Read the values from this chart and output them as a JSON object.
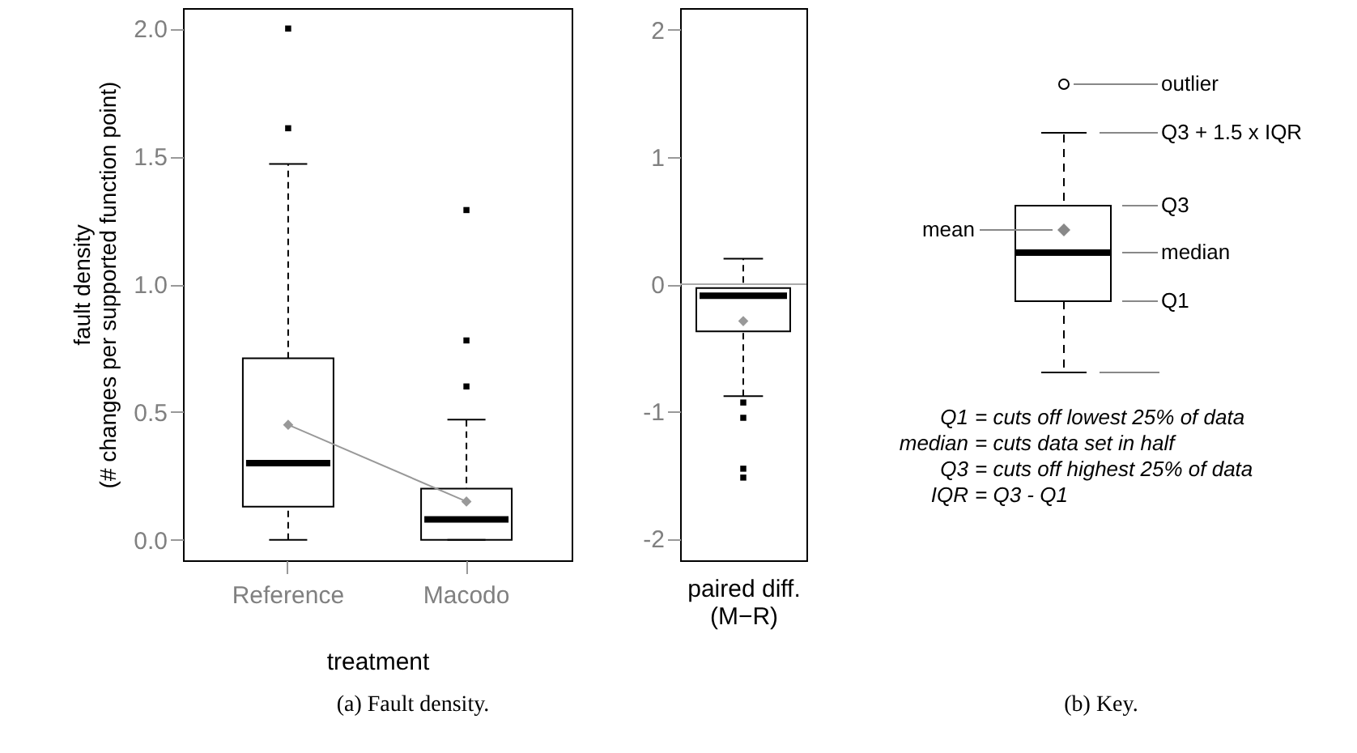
{
  "chart_data": [
    {
      "type": "box",
      "ylabel": "fault density\n(# changes per supported function point)",
      "xlabel": "treatment",
      "categories": [
        "Reference",
        "Macodo"
      ],
      "boxes": [
        {
          "low": 0,
          "q1": 0.13,
          "median": 0.3,
          "q3": 0.71,
          "high": 1.47,
          "mean": 0.45,
          "outliers": [
            1.61,
            2.0
          ]
        },
        {
          "low": 0,
          "q1": 0,
          "median": 0.08,
          "q3": 0.2,
          "high": 0.47,
          "mean": 0.15,
          "outliers": [
            0.6,
            0.78,
            1.29
          ]
        }
      ],
      "series": [
        {
          "type": "line",
          "color": "#999999",
          "x": [
            "Reference",
            "Macodo"
          ],
          "values": [
            0.45,
            0.15
          ]
        }
      ],
      "ylim": [
        -0.08,
        2.08
      ],
      "yticks": [
        {
          "value": 0,
          "label": "0.0"
        },
        {
          "value": 0.5,
          "label": "0.5"
        },
        {
          "value": 1,
          "label": "1.0"
        },
        {
          "value": 1.5,
          "label": "1.5"
        },
        {
          "value": 2,
          "label": "2.0"
        }
      ],
      "annotations": [
        "(a) Fault density."
      ]
    },
    {
      "type": "box",
      "xlabel": "paired diff.\n(M−R)",
      "categories": [
        null
      ],
      "boxes": [
        {
          "low": -0.88,
          "q1": -0.37,
          "median": -0.09,
          "q3": -0.03,
          "high": 0.2,
          "mean": -0.29,
          "outliers": [
            -0.93,
            -1.05,
            -1.45,
            -1.52
          ]
        }
      ],
      "ylim": [
        -2.17,
        2.17
      ],
      "yticks": [
        -2,
        -1,
        0,
        1,
        2
      ],
      "ref_lines": [
        {
          "axis": "y",
          "value": 0,
          "color": "#aaaaaa"
        }
      ]
    },
    {
      "type": "other",
      "annotations": [
        "outlier",
        "Q3 + 1.5 x IQR",
        "Q3",
        "median",
        "Q1",
        "mean",
        "Q1 = cuts off lowest 25% of data",
        "median = cuts data set in half",
        "Q3 = cuts off highest 25% of data",
        "IQR = Q3 - Q1",
        "(b) Key."
      ]
    }
  ]
}
